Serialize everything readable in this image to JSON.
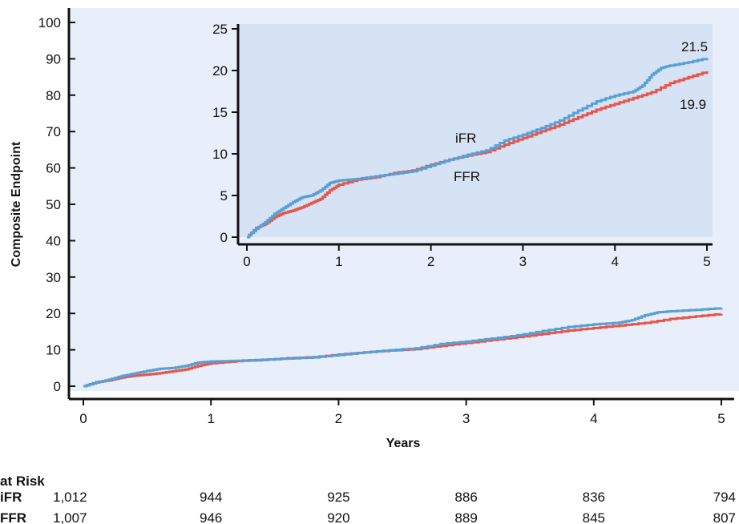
{
  "colors": {
    "ifr": "#5a9fd4",
    "ffr": "#e8564a",
    "main_bg": "#e8effa",
    "inset_bg": "#d6e3f5",
    "axis": "#111111"
  },
  "chart_data": [
    {
      "type": "line",
      "title": "",
      "xlabel": "Years",
      "ylabel": "Composite Endpoint",
      "xlim": [
        0,
        5
      ],
      "ylim": [
        0,
        100
      ],
      "x_ticks": [
        "0",
        "1",
        "2",
        "3",
        "4",
        "5"
      ],
      "y_ticks": [
        "0",
        "10",
        "20",
        "30",
        "40",
        "50",
        "60",
        "70",
        "80",
        "90",
        "100"
      ],
      "grid": false,
      "series": [
        {
          "name": "iFR",
          "x": [
            0,
            0.1,
            0.2,
            0.3,
            0.4,
            0.5,
            0.6,
            0.7,
            0.8,
            0.9,
            1.0,
            1.2,
            1.4,
            1.6,
            1.8,
            2.0,
            2.2,
            2.4,
            2.6,
            2.8,
            3.0,
            3.2,
            3.4,
            3.6,
            3.8,
            4.0,
            4.2,
            4.3,
            4.4,
            4.5,
            4.6,
            4.8,
            5.0
          ],
          "values": [
            0,
            1.0,
            1.8,
            2.8,
            3.5,
            4.2,
            4.8,
            5.0,
            5.6,
            6.5,
            6.8,
            7.0,
            7.3,
            7.6,
            7.9,
            8.6,
            9.3,
            9.9,
            10.4,
            11.6,
            12.3,
            13.1,
            14.0,
            15.2,
            16.3,
            17.0,
            17.5,
            18.2,
            19.5,
            20.3,
            20.6,
            21.0,
            21.5
          ]
        },
        {
          "name": "FFR",
          "x": [
            0,
            0.1,
            0.2,
            0.3,
            0.4,
            0.5,
            0.6,
            0.7,
            0.8,
            0.9,
            1.0,
            1.2,
            1.4,
            1.6,
            1.8,
            2.0,
            2.2,
            2.4,
            2.6,
            2.8,
            3.0,
            3.2,
            3.4,
            3.6,
            3.8,
            4.0,
            4.2,
            4.4,
            4.6,
            4.8,
            5.0
          ],
          "values": [
            0,
            1.1,
            1.6,
            2.4,
            2.9,
            3.2,
            3.6,
            4.1,
            4.6,
            5.6,
            6.3,
            6.9,
            7.2,
            7.7,
            8.0,
            8.7,
            9.3,
            9.8,
            10.2,
            11.1,
            11.9,
            12.7,
            13.5,
            14.4,
            15.3,
            16.0,
            16.7,
            17.4,
            18.5,
            19.2,
            19.9
          ]
        }
      ]
    },
    {
      "type": "line",
      "title": "",
      "xlim": [
        0,
        5
      ],
      "ylim": [
        0,
        25
      ],
      "x_ticks": [
        "0",
        "1",
        "2",
        "3",
        "4",
        "5"
      ],
      "y_ticks": [
        "0",
        "5",
        "10",
        "15",
        "20",
        "25"
      ],
      "grid": false,
      "series": [
        {
          "name": "iFR",
          "end_label": "21.5"
        },
        {
          "name": "FFR",
          "end_label": "19.9"
        }
      ],
      "annotations": [
        "iFR",
        "FFR",
        "21.5",
        "19.9"
      ]
    }
  ],
  "risk_table": {
    "title": "at Risk",
    "rows": [
      {
        "label": "iFR",
        "values": [
          "1,012",
          "944",
          "925",
          "886",
          "836",
          "794"
        ]
      },
      {
        "label": "FFR",
        "values": [
          "1,007",
          "946",
          "920",
          "889",
          "845",
          "807"
        ]
      }
    ]
  }
}
